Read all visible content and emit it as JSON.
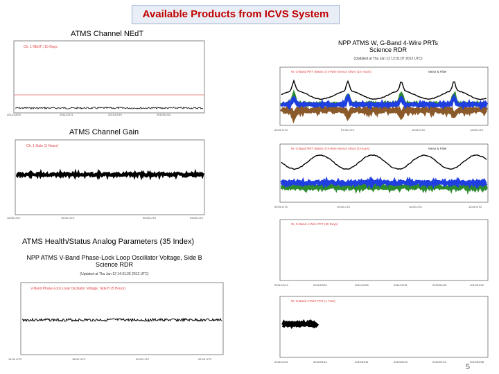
{
  "banner": {
    "title": "Available Products from ICVS System"
  },
  "sections": {
    "nedt": "ATMS Channel NEdT",
    "gain": "ATMS Channel Gain",
    "health": "ATMS Health/Status Analog Parameters (35 Index)"
  },
  "panels": {
    "nedt": {
      "legend": "Ch. 1 NEdT | 10-Days"
    },
    "gain": {
      "legend": "Ch. 1 Gain (3 Hours)"
    },
    "prt": {
      "title": "NPP ATMS W, G-Band 4-Wire PRTs",
      "subtitle": "Science RDR",
      "updated": "(Updated at Thu Jan 12 13:31:07 2012 UTC)",
      "legend1": "W, G-Band PRT (Mean of 4-Wire Sensor Alive) (10 Hours)",
      "legend2": "W, G-Band PRT (Mean of 4-Wire Sensor Alive) (3 Hours)",
      "keys": [
        "Mean & Filter",
        "p1",
        "p2",
        "p3",
        "p4"
      ]
    },
    "prt3": {
      "legend": "W, G-Band 4-Wire PRT (30 Days)"
    },
    "prt4": {
      "legend": "W, G-Band 4-Wire PRT (1 Year)"
    },
    "pll": {
      "title": "NPP ATMS V-Band Phase-Lock Loop Oscillator Voltage, Side B",
      "subtitle": "Science RDR",
      "updated": "(Updated at Thu Jan 12 14:31:25 2012 UTC)",
      "legend": "V-Band Phase-Lock Loop Oscillator Voltage, Side B (5 Hours)"
    }
  },
  "page_number": "5",
  "colors": {
    "banner_text": "#c00000",
    "banner_bg": "#e9eef6",
    "series_black": "#000000",
    "series_green": "#2e8b2e",
    "series_brown": "#8b5a2b",
    "series_blue": "#1f3fe0",
    "ref_red": "#e06060"
  }
}
